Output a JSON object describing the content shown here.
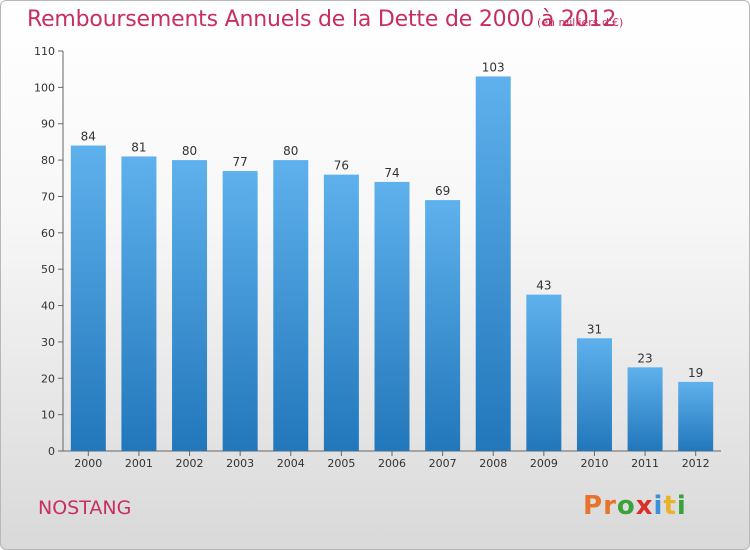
{
  "header": {
    "title": "Remboursements Annuels de la Dette de 2000 à 2012",
    "subtitle": "(en milliers d'€)"
  },
  "footer": {
    "city": "NOSTANG",
    "logo_letters": [
      "P",
      "r",
      "o",
      "x",
      "i",
      "t",
      "i"
    ],
    "logo_colors": [
      "#e8732c",
      "#e8732c",
      "#3aa23a",
      "#d9302a",
      "#3a8fd9",
      "#e8b32c",
      "#3aa23a"
    ]
  },
  "colors": {
    "bar_top": "#5eb1ec",
    "bar_bottom": "#2277bb",
    "accent": "#c72f63"
  },
  "chart_data": {
    "type": "bar",
    "categories": [
      "2000",
      "2001",
      "2002",
      "2003",
      "2004",
      "2005",
      "2006",
      "2007",
      "2008",
      "2009",
      "2010",
      "2011",
      "2012"
    ],
    "values": [
      84,
      81,
      80,
      77,
      80,
      76,
      74,
      69,
      103,
      43,
      31,
      23,
      19
    ],
    "ylim": [
      0,
      110
    ],
    "yticks": [
      0,
      10,
      20,
      30,
      40,
      50,
      60,
      70,
      80,
      90,
      100,
      110
    ],
    "grid": false,
    "title": "Remboursements Annuels de la Dette de 2000 à 2012",
    "xlabel": "",
    "ylabel": ""
  }
}
